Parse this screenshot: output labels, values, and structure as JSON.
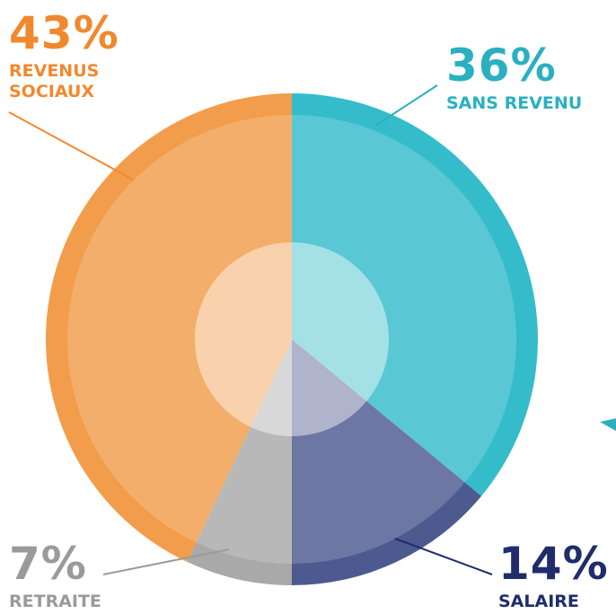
{
  "chart_data": {
    "type": "pie",
    "categories": [
      "SANS REVENU",
      "SALAIRE",
      "RETRAITE",
      "REVENUS SOCIAUX"
    ],
    "values": [
      36,
      14,
      7,
      43
    ],
    "value_labels": [
      "36%",
      "14%",
      "7%",
      "43%"
    ],
    "colors": [
      "#35bccb",
      "#4d5a8f",
      "#a9a9a9",
      "#f29d4b"
    ],
    "label_colors": [
      "#2ab0c0",
      "#1f2d6b",
      "#9a9a9a",
      "#f0892e"
    ]
  }
}
